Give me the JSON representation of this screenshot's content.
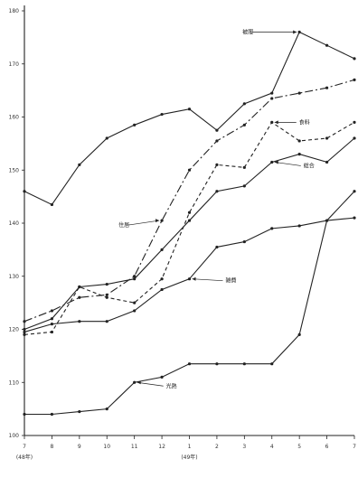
{
  "chart_data": {
    "type": "line",
    "title": "",
    "xlabel": "",
    "ylabel": "",
    "x": [
      "7",
      "8",
      "9",
      "10",
      "11",
      "12",
      "1",
      "2",
      "3",
      "4",
      "5",
      "6",
      "7"
    ],
    "x_tick_labels": [
      "7",
      "8",
      "9",
      "10",
      "11",
      "12",
      "1",
      "2",
      "3",
      "4",
      "5",
      "6",
      "7"
    ],
    "x_year_labels": [
      {
        "at": "7",
        "text": "(48年)"
      },
      {
        "at": "1",
        "text": "(49年)"
      }
    ],
    "ylim": [
      100,
      180
    ],
    "yticks": [
      "100",
      "110",
      "120",
      "130",
      "140",
      "150",
      "160",
      "170",
      "180"
    ],
    "grid": false,
    "series": [
      {
        "name": "被服",
        "style": "solid",
        "color": "#222222",
        "values": [
          146,
          143.5,
          151,
          156,
          158.5,
          160.5,
          161.5,
          157.5,
          162.5,
          164.5,
          176,
          173.5,
          171
        ]
      },
      {
        "name": "食料",
        "style": "dash-dot",
        "color": "#222222",
        "values": [
          121.5,
          123.5,
          126,
          126.5,
          130,
          140.5,
          150,
          155.5,
          158.5,
          163.5,
          164.5,
          165.5,
          167
        ]
      },
      {
        "name": "総合",
        "style": "solid",
        "color": "#222222",
        "values": [
          120,
          122,
          128,
          128.5,
          129.5,
          135,
          140.5,
          146,
          147,
          151.5,
          153,
          151.5,
          156
        ]
      },
      {
        "name": "住居",
        "style": "dashed",
        "color": "#222222",
        "values": [
          119,
          119.5,
          128,
          126,
          125,
          129.5,
          142,
          151,
          150.5,
          159,
          155.5,
          156,
          159
        ]
      },
      {
        "name": "雑費",
        "style": "solid",
        "color": "#222222",
        "values": [
          119.5,
          121,
          121.5,
          121.5,
          123.5,
          127.5,
          129.5,
          135.5,
          136.5,
          139,
          139.5,
          140.5,
          141
        ]
      },
      {
        "name": "光熱",
        "style": "solid",
        "color": "#222222",
        "values": [
          104,
          104,
          104.5,
          105,
          110,
          111,
          113.5,
          113.5,
          113.5,
          113.5,
          119,
          140.5,
          146
        ]
      }
    ],
    "annotations": [
      {
        "text": "被服",
        "series": "被服",
        "at_index": 10
      },
      {
        "text": "食料",
        "series": "住居",
        "at_index": 9
      },
      {
        "text": "総合",
        "series": "総合",
        "at_index": 9
      },
      {
        "text": "住居",
        "series": "食料",
        "at_index": 5
      },
      {
        "text": "雑費",
        "series": "雑費",
        "at_index": 6
      },
      {
        "text": "光熱",
        "series": "光熱",
        "at_index": 4
      }
    ]
  }
}
